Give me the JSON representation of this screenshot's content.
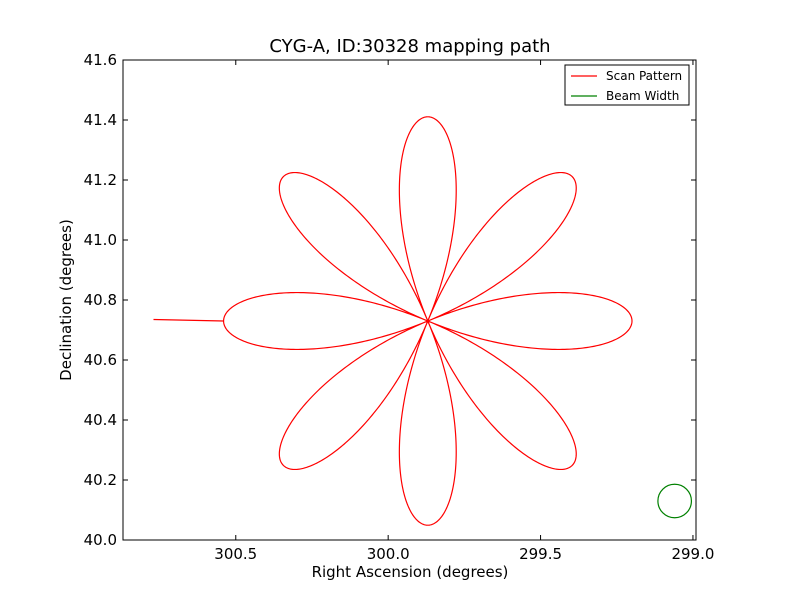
{
  "chart_data": {
    "type": "line",
    "title": "CYG-A, ID:30328 mapping path",
    "xlabel": "Right Ascension (degrees)",
    "ylabel": "Declination (degrees)",
    "xlim": [
      300.87,
      298.99
    ],
    "ylim": [
      40.0,
      41.6
    ],
    "x_inverted": true,
    "x_ticks": [
      300.5,
      300.0,
      299.5,
      299.0
    ],
    "x_tick_labels": [
      "300.5",
      "300.0",
      "299.5",
      "299.0"
    ],
    "y_ticks": [
      40.0,
      40.2,
      40.4,
      40.6,
      40.8,
      41.0,
      41.2,
      41.4,
      41.6
    ],
    "y_tick_labels": [
      "40.0",
      "40.2",
      "40.4",
      "40.6",
      "40.8",
      "41.0",
      "41.2",
      "41.4",
      "41.6"
    ],
    "grid": false,
    "legend_position": "top-right",
    "series": [
      {
        "name": "Scan Pattern",
        "color": "#ff0000",
        "pattern": "rose",
        "center": [
          299.87,
          40.73
        ],
        "petals": 8,
        "petal_length_deg": 0.67,
        "start_point": [
          300.77,
          40.735
        ]
      },
      {
        "name": "Beam Width",
        "color": "#008000",
        "pattern": "circle",
        "center": [
          299.06,
          40.13
        ],
        "radius_deg": 0.055
      }
    ]
  }
}
